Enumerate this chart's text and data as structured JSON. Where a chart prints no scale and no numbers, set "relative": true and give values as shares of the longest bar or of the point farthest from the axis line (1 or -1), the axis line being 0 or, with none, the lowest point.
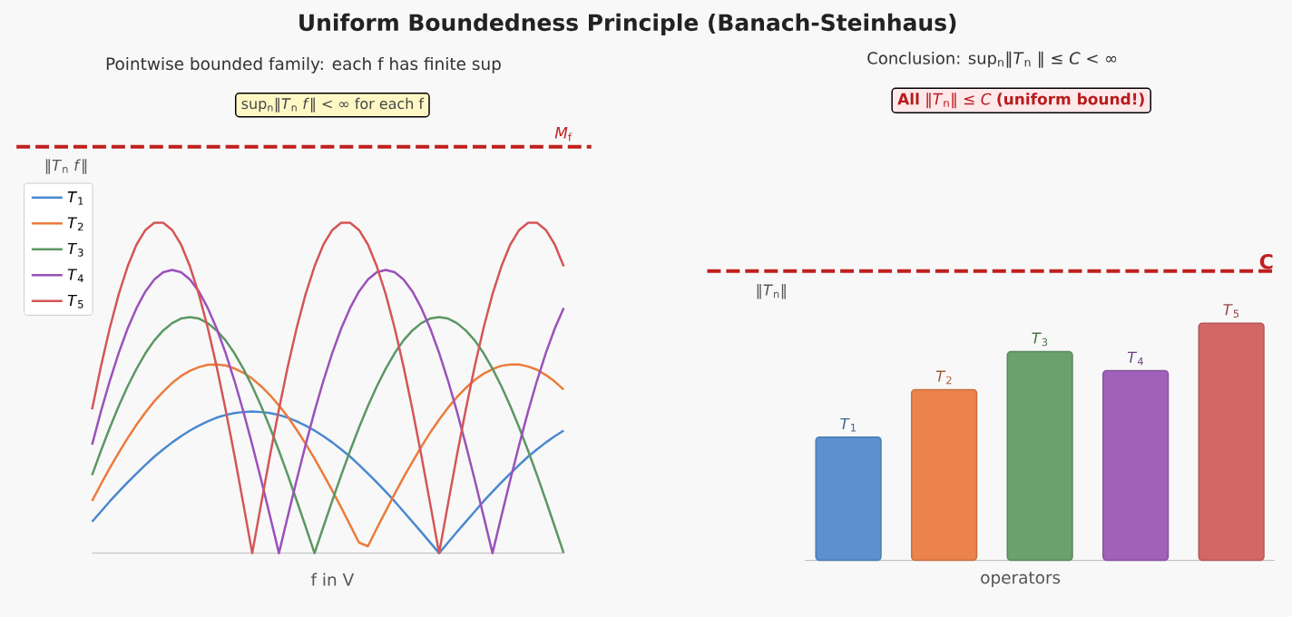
{
  "chart_data": [
    {
      "type": "line",
      "title": "Uniform Boundedness Principle (Banach-Steinhaus)",
      "subtitle": "Pointwise bounded family: each f has finite sup",
      "xlabel": "f in V",
      "ylabel": "‖*T*$_{n}$ *f*‖",
      "relative": true,
      "legend": "top left",
      "categories": [
        null,
        null,
        null,
        null,
        null,
        null,
        null,
        null,
        null,
        null,
        null,
        null,
        null,
        null,
        null,
        null,
        null,
        null,
        null,
        null,
        null,
        null,
        null,
        null,
        null,
        null,
        null,
        null,
        null,
        null,
        null,
        null,
        null,
        null,
        null,
        null,
        null,
        null,
        null,
        null,
        null,
        null,
        null,
        null,
        null,
        null,
        null,
        null,
        null,
        null,
        null,
        null,
        null,
        null
      ],
      "series": [
        {
          "name": "*T*$_{1}$",
          "color": "#4a88cf",
          "values": [
            0.095,
            0.126,
            0.157,
            0.186,
            0.214,
            0.241,
            0.267,
            0.292,
            0.314,
            0.335,
            0.354,
            0.371,
            0.386,
            0.399,
            0.41,
            0.418,
            0.424,
            0.427,
            0.429,
            0.427,
            0.424,
            0.418,
            0.41,
            0.399,
            0.386,
            0.371,
            0.354,
            0.335,
            0.314,
            0.292,
            0.267,
            0.241,
            0.214,
            0.186,
            0.157,
            0.126,
            0.095,
            0.064,
            0.032,
            0,
            0.032,
            0.064,
            0.095,
            0.126,
            0.157,
            0.186,
            0.214,
            0.241,
            0.267,
            0.292,
            0.314,
            0.335,
            0.354,
            0.371
          ]
        },
        {
          "name": "*T*$_{2}$",
          "color": "#ec7b3c",
          "values": [
            0.158,
            0.209,
            0.258,
            0.304,
            0.348,
            0.389,
            0.426,
            0.46,
            0.489,
            0.515,
            0.536,
            0.552,
            0.563,
            0.57,
            0.571,
            0.568,
            0.559,
            0.546,
            0.528,
            0.505,
            0.478,
            0.447,
            0.412,
            0.373,
            0.331,
            0.286,
            0.238,
            0.189,
            0.138,
            0.085,
            0.032,
            0.021,
            0.075,
            0.127,
            0.179,
            0.229,
            0.276,
            0.322,
            0.365,
            0.404,
            0.44,
            0.472,
            0.5,
            0.524,
            0.543,
            0.557,
            0.567,
            0.571,
            0.571,
            0.565,
            0.555,
            0.539,
            0.519,
            0.495
          ]
        },
        {
          "name": "*T*$_{3}$",
          "color": "#5c9764",
          "values": [
            0.236,
            0.31,
            0.38,
            0.445,
            0.505,
            0.558,
            0.605,
            0.644,
            0.674,
            0.696,
            0.71,
            0.714,
            0.71,
            0.696,
            0.674,
            0.644,
            0.605,
            0.558,
            0.505,
            0.445,
            0.38,
            0.31,
            0.236,
            0.159,
            0.08,
            0,
            0.08,
            0.159,
            0.236,
            0.31,
            0.38,
            0.445,
            0.505,
            0.558,
            0.605,
            0.644,
            0.674,
            0.696,
            0.71,
            0.714,
            0.71,
            0.696,
            0.674,
            0.644,
            0.605,
            0.558,
            0.505,
            0.445,
            0.38,
            0.31,
            0.236,
            0.159,
            0.08,
            0
          ]
        },
        {
          "name": "*T*$_{4}$",
          "color": "#9b51bb",
          "values": [
            0.328,
            0.429,
            0.522,
            0.606,
            0.68,
            0.742,
            0.792,
            0.828,
            0.85,
            0.857,
            0.85,
            0.828,
            0.792,
            0.742,
            0.68,
            0.606,
            0.522,
            0.429,
            0.328,
            0.222,
            0.112,
            0,
            0.112,
            0.222,
            0.328,
            0.429,
            0.522,
            0.606,
            0.68,
            0.742,
            0.792,
            0.828,
            0.85,
            0.857,
            0.85,
            0.828,
            0.792,
            0.742,
            0.68,
            0.606,
            0.522,
            0.429,
            0.328,
            0.222,
            0.112,
            0,
            0.112,
            0.222,
            0.328,
            0.429,
            0.522,
            0.606,
            0.68,
            0.742
          ]
        },
        {
          "name": "*T*$_{5}$",
          "color": "#d45656",
          "values": [
            0.435,
            0.565,
            0.682,
            0.784,
            0.868,
            0.934,
            0.978,
            1,
            1,
            0.978,
            0.934,
            0.868,
            0.784,
            0.682,
            0.565,
            0.435,
            0.296,
            0.149,
            0,
            0.149,
            0.296,
            0.435,
            0.565,
            0.682,
            0.784,
            0.868,
            0.934,
            0.978,
            1,
            1,
            0.978,
            0.934,
            0.868,
            0.784,
            0.682,
            0.565,
            0.435,
            0.296,
            0.149,
            0,
            0.149,
            0.296,
            0.435,
            0.565,
            0.682,
            0.784,
            0.868,
            0.934,
            0.978,
            1,
            1,
            0.978,
            0.934,
            0.868
          ]
        }
      ],
      "ref_lines": [
        {
          "axis": "y",
          "value": 1.23,
          "label": "*M*$_{f}$",
          "color": "#c0201f",
          "line_style": "dashed"
        }
      ],
      "annotations": [
        "sup$_{n}$‖*T*$_{n}$ *f*‖ < ∞ for each f"
      ]
    },
    {
      "type": "bar",
      "title": "Conclusion: sup$_{n}$‖*T*$_{n}$ ‖ ≤ *C* < ∞",
      "xlabel": "operators",
      "ylabel": "‖*T*$_{n}$‖",
      "relative": true,
      "categories": [
        "*T*$_{1}$",
        "*T*$_{2}$",
        "*T*$_{3}$",
        "*T*$_{4}$",
        "*T*$_{5}$"
      ],
      "values": [
        0.52,
        0.72,
        0.88,
        0.8,
        1
      ],
      "colors": [
        "#5b91d0",
        "#eb834b",
        "#6aa16c",
        "#a160b9",
        "#d46666"
      ],
      "ref_lines": [
        {
          "axis": "y",
          "value": 1.22,
          "label": "C",
          "color": "#c0201f",
          "line_style": "dashed"
        }
      ],
      "annotations": [
        "**All** ‖*T*$_{n}$‖ ≤ *C* **(uniform bound!)**"
      ]
    }
  ]
}
